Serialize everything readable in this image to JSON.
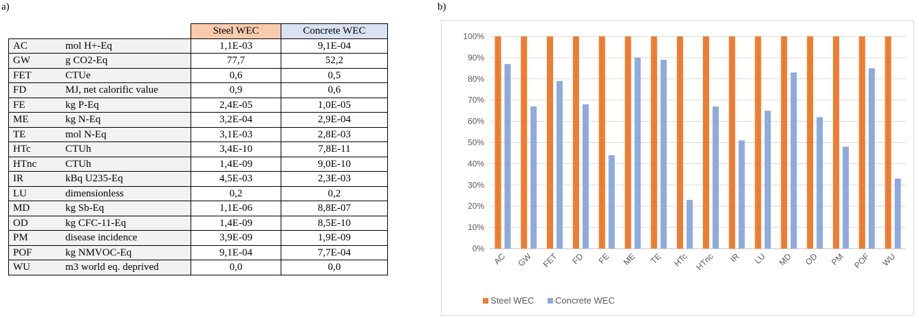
{
  "panels": {
    "a": "a)",
    "b": "b)"
  },
  "table": {
    "headers": [
      "Steel WEC",
      "Concrete WEC"
    ],
    "rows": [
      {
        "abbr": "AC",
        "unit": "mol H+-Eq",
        "steel": "1,1E-03",
        "concrete": "9,1E-04"
      },
      {
        "abbr": "GW",
        "unit": "g CO2-Eq",
        "steel": "77,7",
        "concrete": "52,2"
      },
      {
        "abbr": "FET",
        "unit": "CTUe",
        "steel": "0,6",
        "concrete": "0,5"
      },
      {
        "abbr": "FD",
        "unit": "MJ, net calorific value",
        "steel": "0,9",
        "concrete": "0,6"
      },
      {
        "abbr": "FE",
        "unit": "kg P-Eq",
        "steel": "2,4E-05",
        "concrete": "1,0E-05"
      },
      {
        "abbr": "ME",
        "unit": "kg N-Eq",
        "steel": "3,2E-04",
        "concrete": "2,9E-04"
      },
      {
        "abbr": "TE",
        "unit": "mol N-Eq",
        "steel": "3,1E-03",
        "concrete": "2,8E-03"
      },
      {
        "abbr": "HTc",
        "unit": "CTUh",
        "steel": "3,4E-10",
        "concrete": "7,8E-11"
      },
      {
        "abbr": "HTnc",
        "unit": "CTUh",
        "steel": "1,4E-09",
        "concrete": "9,0E-10"
      },
      {
        "abbr": "IR",
        "unit": "kBq U235-Eq",
        "steel": "4,5E-03",
        "concrete": "2,3E-03"
      },
      {
        "abbr": "LU",
        "unit": "dimensionless",
        "steel": "0,2",
        "concrete": "0,2"
      },
      {
        "abbr": "MD",
        "unit": "kg Sb-Eq",
        "steel": "1,1E-06",
        "concrete": "8,8E-07"
      },
      {
        "abbr": "OD",
        "unit": "kg CFC-11-Eq",
        "steel": "1,4E-09",
        "concrete": "8,5E-10"
      },
      {
        "abbr": "PM",
        "unit": "disease incidence",
        "steel": "3,9E-09",
        "concrete": "1,9E-09"
      },
      {
        "abbr": "POF",
        "unit": "kg NMVOC-Eq",
        "steel": "9,1E-04",
        "concrete": "7,7E-04"
      },
      {
        "abbr": "WU",
        "unit": "m3 world eq. deprived",
        "steel": "0,0",
        "concrete": "0,0"
      }
    ]
  },
  "chart_data": {
    "type": "bar",
    "categories": [
      "AC",
      "GW",
      "FET",
      "FD",
      "FE",
      "ME",
      "TE",
      "HTc",
      "HTnc",
      "IR",
      "LU",
      "MD",
      "OD",
      "PM",
      "POF",
      "WU"
    ],
    "series": [
      {
        "name": "Steel WEC",
        "color": "#ed7d31",
        "values": [
          100,
          100,
          100,
          100,
          100,
          100,
          100,
          100,
          100,
          100,
          100,
          100,
          100,
          100,
          100,
          100
        ]
      },
      {
        "name": "Concrete WEC",
        "color": "#8faadc",
        "values": [
          87,
          67,
          79,
          68,
          44,
          90,
          89,
          23,
          67,
          51,
          65,
          83,
          62,
          48,
          85,
          33
        ]
      }
    ],
    "yticks": [
      "0%",
      "10%",
      "20%",
      "30%",
      "40%",
      "50%",
      "60%",
      "70%",
      "80%",
      "90%",
      "100%"
    ],
    "ylim": [
      0,
      100
    ],
    "grid": true,
    "legend": "bottom-left"
  }
}
